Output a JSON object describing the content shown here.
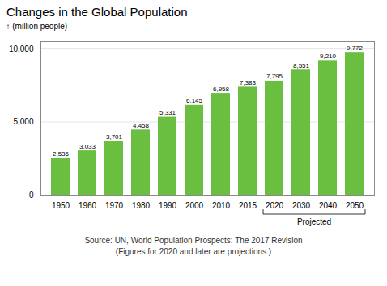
{
  "chart_data": {
    "type": "bar",
    "title": "Changes in the Global Population",
    "ylabel": "(million people)",
    "categories": [
      "1950",
      "1960",
      "1970",
      "1980",
      "1990",
      "2000",
      "2010",
      "2015",
      "2020",
      "2030",
      "2040",
      "2050"
    ],
    "values": [
      2536,
      3033,
      3701,
      4458,
      5331,
      6145,
      6958,
      7383,
      7795,
      8551,
      9210,
      9772
    ],
    "value_labels": [
      "2,536",
      "3,033",
      "3,701",
      "4,458",
      "5,331",
      "6,145",
      "6,958",
      "7,383",
      "7,795",
      "8,551",
      "9,210",
      "9,772"
    ],
    "data_labels": true,
    "color": "#6abf40",
    "ylim": [
      0,
      10500
    ],
    "yticks": [
      0,
      {
        "value": 5000,
        "label": "5,000"
      },
      {
        "value": 10000,
        "label": "10,000"
      }
    ],
    "grid": true,
    "annotations": [
      {
        "text": "Projected",
        "from": "2020",
        "to": "2050"
      }
    ],
    "caption": [
      "Source: UN, World Population Prospects: The 2017 Revision",
      "(Figures for 2020 and later are projections.)"
    ]
  }
}
